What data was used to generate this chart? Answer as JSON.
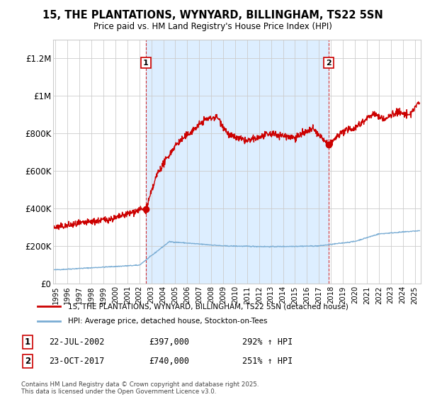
{
  "title": "15, THE PLANTATIONS, WYNYARD, BILLINGHAM, TS22 5SN",
  "subtitle": "Price paid vs. HM Land Registry's House Price Index (HPI)",
  "ylabel_ticks": [
    "£0",
    "£200K",
    "£400K",
    "£600K",
    "£800K",
    "£1M",
    "£1.2M"
  ],
  "ytick_values": [
    0,
    200000,
    400000,
    600000,
    800000,
    1000000,
    1200000
  ],
  "ylim": [
    0,
    1300000
  ],
  "xlim_start": 1994.8,
  "xlim_end": 2025.5,
  "xtick_years": [
    1995,
    1996,
    1997,
    1998,
    1999,
    2000,
    2001,
    2002,
    2003,
    2004,
    2005,
    2006,
    2007,
    2008,
    2009,
    2010,
    2011,
    2012,
    2013,
    2014,
    2015,
    2016,
    2017,
    2018,
    2019,
    2020,
    2021,
    2022,
    2023,
    2024,
    2025
  ],
  "red_line_color": "#cc0000",
  "blue_line_color": "#7aadd4",
  "shade_color": "#ddeeff",
  "marker1_x": 2002.55,
  "marker1_y": 397000,
  "marker2_x": 2017.81,
  "marker2_y": 740000,
  "vline1_x": 2002.55,
  "vline2_x": 2017.81,
  "legend_red_label": "15, THE PLANTATIONS, WYNYARD, BILLINGHAM, TS22 5SN (detached house)",
  "legend_blue_label": "HPI: Average price, detached house, Stockton-on-Tees",
  "annotation1_label": "1",
  "annotation2_label": "2",
  "annotation1_date": "22-JUL-2002",
  "annotation1_price": "£397,000",
  "annotation1_hpi": "292% ↑ HPI",
  "annotation2_date": "23-OCT-2017",
  "annotation2_price": "£740,000",
  "annotation2_hpi": "251% ↑ HPI",
  "footer": "Contains HM Land Registry data © Crown copyright and database right 2025.\nThis data is licensed under the Open Government Licence v3.0.",
  "background_color": "#ffffff",
  "plot_bg_color": "#ffffff",
  "grid_color": "#cccccc"
}
